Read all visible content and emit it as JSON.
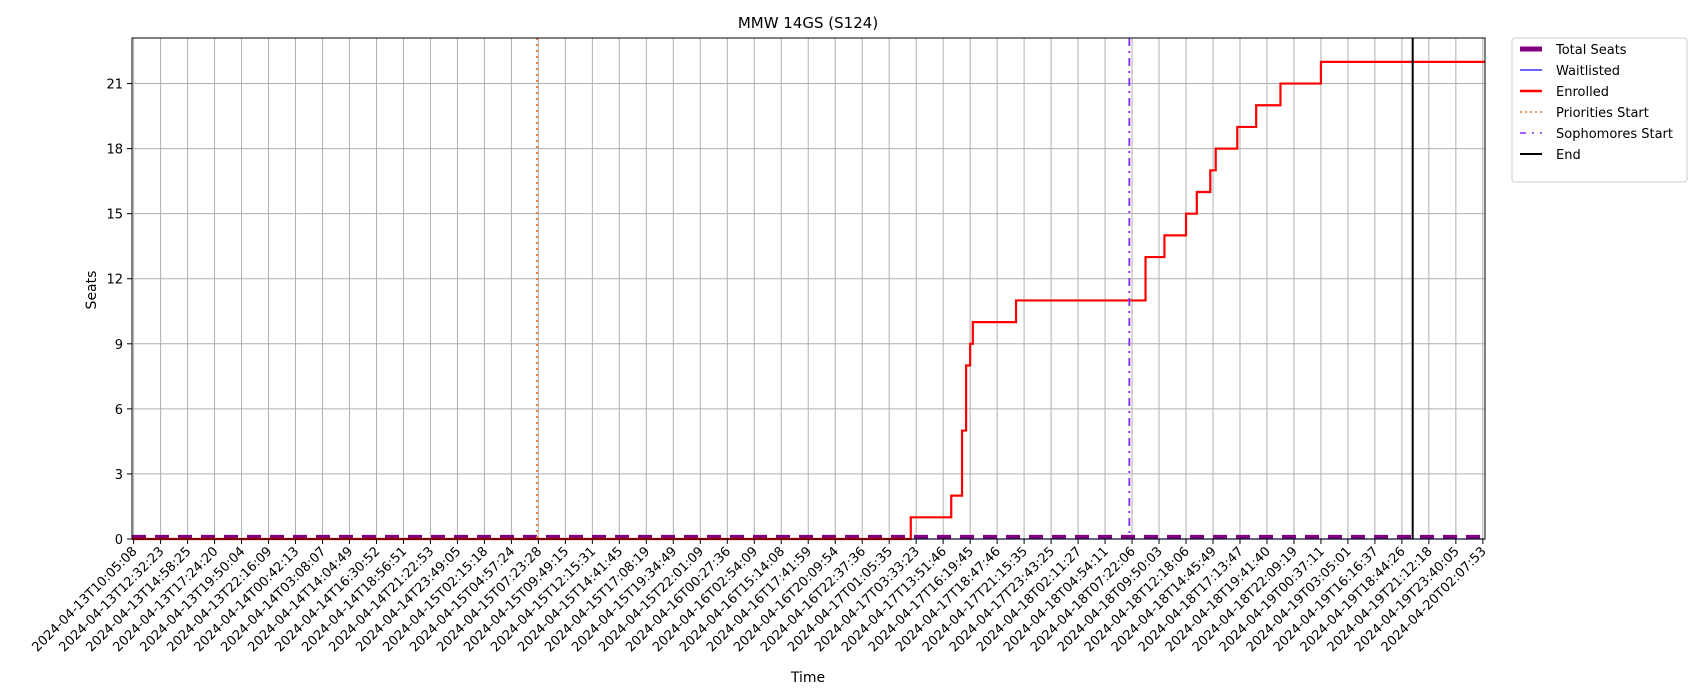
{
  "chart_data": {
    "type": "line",
    "title": "MMW 14GS (S124)",
    "xlabel": "Time",
    "ylabel": "Seats",
    "ylim": [
      0,
      23.1
    ],
    "yticks": [
      0,
      3,
      6,
      9,
      12,
      15,
      18,
      21
    ],
    "grid": true,
    "legend_position": "outside-top-right",
    "x_ticks": [
      "2024-04-13T10:05:08",
      "2024-04-13T12:32:23",
      "2024-04-13T14:58:25",
      "2024-04-13T17:24:20",
      "2024-04-13T19:50:04",
      "2024-04-13T22:16:09",
      "2024-04-14T00:42:13",
      "2024-04-14T03:08:07",
      "2024-04-14T14:04:49",
      "2024-04-14T16:30:52",
      "2024-04-14T18:56:51",
      "2024-04-14T21:22:53",
      "2024-04-14T23:49:05",
      "2024-04-15T02:15:18",
      "2024-04-15T04:57:24",
      "2024-04-15T07:23:28",
      "2024-04-15T09:49:15",
      "2024-04-15T12:15:31",
      "2024-04-15T14:41:45",
      "2024-04-15T17:08:19",
      "2024-04-15T19:34:49",
      "2024-04-15T22:01:09",
      "2024-04-16T00:27:36",
      "2024-04-16T02:54:09",
      "2024-04-16T15:14:08",
      "2024-04-16T17:41:59",
      "2024-04-16T20:09:54",
      "2024-04-16T22:37:36",
      "2024-04-17T01:05:35",
      "2024-04-17T03:33:23",
      "2024-04-17T13:51:46",
      "2024-04-17T16:19:45",
      "2024-04-17T18:47:46",
      "2024-04-17T21:15:35",
      "2024-04-17T23:43:25",
      "2024-04-18T02:11:27",
      "2024-04-18T04:54:11",
      "2024-04-18T07:22:06",
      "2024-04-18T09:50:03",
      "2024-04-18T12:18:06",
      "2024-04-18T14:45:49",
      "2024-04-18T17:13:47",
      "2024-04-18T19:41:40",
      "2024-04-18T22:09:19",
      "2024-04-19T00:37:11",
      "2024-04-19T03:05:01",
      "2024-04-19T16:16:37",
      "2024-04-19T18:44:26",
      "2024-04-19T21:12:18",
      "2024-04-19T23:40:05",
      "2024-04-20T02:07:53"
    ],
    "x_range_ticks": [
      -0.06,
      50.08
    ],
    "series": [
      {
        "name": "Total Seats",
        "color": "#800080",
        "style": "dashed-thick",
        "points": [
          [
            -0.06,
            0.1
          ],
          [
            50.08,
            0.1
          ]
        ]
      },
      {
        "name": "Waitlisted",
        "color": "#3333ff",
        "style": "solid-thin",
        "points": [
          [
            -0.06,
            0
          ],
          [
            50.08,
            0
          ]
        ]
      },
      {
        "name": "Enrolled",
        "color": "#ff0000",
        "style": "step",
        "points": [
          [
            -0.06,
            0
          ],
          [
            28.8,
            0
          ],
          [
            28.8,
            1
          ],
          [
            30.3,
            1
          ],
          [
            30.3,
            2
          ],
          [
            30.7,
            2
          ],
          [
            30.7,
            5
          ],
          [
            30.85,
            5
          ],
          [
            30.85,
            8
          ],
          [
            31.0,
            8
          ],
          [
            31.0,
            9
          ],
          [
            31.1,
            9
          ],
          [
            31.1,
            10
          ],
          [
            32.7,
            10
          ],
          [
            32.7,
            11
          ],
          [
            37.5,
            11
          ],
          [
            37.5,
            13
          ],
          [
            38.2,
            13
          ],
          [
            38.2,
            14
          ],
          [
            39.0,
            14
          ],
          [
            39.0,
            15
          ],
          [
            39.4,
            15
          ],
          [
            39.4,
            16
          ],
          [
            39.9,
            16
          ],
          [
            39.9,
            17
          ],
          [
            40.1,
            17
          ],
          [
            40.1,
            18
          ],
          [
            40.9,
            18
          ],
          [
            40.9,
            19
          ],
          [
            41.6,
            19
          ],
          [
            41.6,
            20
          ],
          [
            42.5,
            20
          ],
          [
            42.5,
            21
          ],
          [
            44.0,
            21
          ],
          [
            44.0,
            22
          ],
          [
            50.08,
            22
          ]
        ]
      }
    ],
    "vlines": [
      {
        "name": "Priorities Start",
        "color": "#e8742a",
        "style": "dotted",
        "x": 14.95
      },
      {
        "name": "Sophomores Start",
        "color": "#7d2cff",
        "style": "dashdot",
        "x": 36.9
      },
      {
        "name": "End",
        "color": "#000000",
        "style": "solid",
        "x": 47.4
      }
    ],
    "legend": [
      "Total Seats",
      "Waitlisted",
      "Enrolled",
      "Priorities Start",
      "Sophomores Start",
      "End"
    ]
  }
}
